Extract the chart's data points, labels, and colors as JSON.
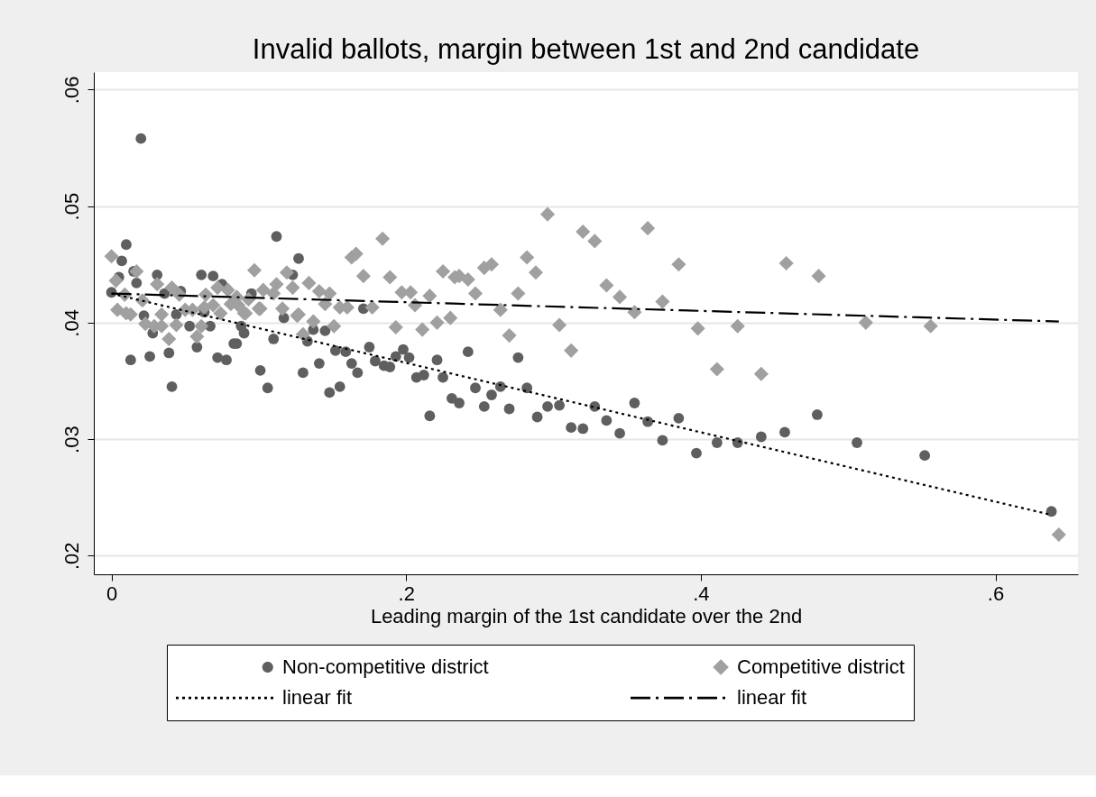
{
  "chart_data": {
    "type": "scatter",
    "title": "Invalid ballots, margin between 1st and 2nd candidate",
    "xlabel": "Leading margin of the 1st candidate over the 2nd",
    "xlim": [
      -0.012,
      0.656
    ],
    "xticks": [
      {
        "value": 0,
        "label": "0"
      },
      {
        "value": 0.2,
        "label": ".2"
      },
      {
        "value": 0.4,
        "label": ".4"
      },
      {
        "value": 0.6,
        "label": ".6"
      }
    ],
    "ylim": [
      0.0184,
      0.0615
    ],
    "yticks": [
      {
        "value": 0.02,
        "label": ".02"
      },
      {
        "value": 0.03,
        "label": ".03"
      },
      {
        "value": 0.04,
        "label": ".04"
      },
      {
        "value": 0.05,
        "label": ".05"
      },
      {
        "value": 0.06,
        "label": ".06"
      }
    ],
    "grid": "y",
    "legend": "bottom",
    "series": [
      {
        "name": "Non-competitive district",
        "type": "scatter",
        "marker": "circle",
        "color": "#5f5f5f",
        "x": [
          0.0,
          0.013,
          0.026,
          0.039,
          0.041,
          0.058,
          0.072,
          0.078,
          0.083,
          0.085,
          0.101,
          0.106,
          0.11,
          0.13,
          0.141,
          0.148,
          0.155,
          0.152,
          0.159,
          0.163,
          0.167,
          0.175,
          0.179,
          0.185,
          0.189,
          0.193,
          0.198,
          0.202,
          0.207,
          0.212,
          0.216,
          0.221,
          0.225,
          0.231,
          0.022,
          0.028,
          0.053,
          0.063,
          0.067,
          0.088,
          0.09,
          0.117,
          0.133,
          0.137,
          0.145,
          0.171,
          0.02,
          0.01,
          0.007,
          0.112,
          0.127,
          0.015,
          0.017,
          0.005,
          0.031,
          0.061,
          0.069,
          0.075,
          0.123,
          0.036,
          0.047,
          0.095,
          0.044,
          0.242,
          0.276,
          0.247,
          0.264,
          0.282,
          0.236,
          0.258,
          0.253,
          0.27,
          0.289,
          0.296,
          0.304,
          0.312,
          0.32,
          0.328,
          0.336,
          0.345,
          0.355,
          0.364,
          0.374,
          0.385,
          0.397,
          0.411,
          0.425,
          0.441,
          0.457,
          0.479,
          0.506,
          0.552,
          0.638
        ],
        "values": [
          0.0426,
          0.0368,
          0.0371,
          0.0374,
          0.0345,
          0.0379,
          0.037,
          0.0368,
          0.0382,
          0.0382,
          0.0359,
          0.0344,
          0.0386,
          0.0357,
          0.0365,
          0.034,
          0.0345,
          0.0376,
          0.0375,
          0.0365,
          0.0357,
          0.0379,
          0.0367,
          0.0363,
          0.0362,
          0.0371,
          0.0377,
          0.037,
          0.0353,
          0.0355,
          0.032,
          0.0368,
          0.0353,
          0.0335,
          0.0406,
          0.0391,
          0.0397,
          0.0409,
          0.0397,
          0.0397,
          0.0391,
          0.0404,
          0.0384,
          0.0394,
          0.0393,
          0.0412,
          0.0558,
          0.0467,
          0.0453,
          0.0474,
          0.0455,
          0.0444,
          0.0434,
          0.0439,
          0.0441,
          0.0441,
          0.044,
          0.0433,
          0.0441,
          0.0425,
          0.0427,
          0.0425,
          0.0407,
          0.0375,
          0.037,
          0.0344,
          0.0345,
          0.0344,
          0.0331,
          0.0338,
          0.0328,
          0.0326,
          0.0319,
          0.0328,
          0.0329,
          0.031,
          0.0309,
          0.0328,
          0.0316,
          0.0305,
          0.0331,
          0.0315,
          0.0299,
          0.0318,
          0.0288,
          0.0297,
          0.0297,
          0.0302,
          0.0306,
          0.0321,
          0.0297,
          0.0286,
          0.0238
        ]
      },
      {
        "name": "Competitive district",
        "type": "scatter",
        "marker": "diamond",
        "color": "#a0a0a0",
        "x": [
          0.0,
          0.166,
          0.163,
          0.184,
          0.097,
          0.119,
          0.017,
          0.003,
          0.031,
          0.041,
          0.134,
          0.171,
          0.189,
          0.225,
          0.233,
          0.112,
          0.123,
          0.141,
          0.148,
          0.197,
          0.203,
          0.216,
          0.009,
          0.072,
          0.079,
          0.103,
          0.11,
          0.021,
          0.046,
          0.064,
          0.085,
          0.093,
          0.004,
          0.01,
          0.013,
          0.05,
          0.055,
          0.063,
          0.069,
          0.081,
          0.086,
          0.101,
          0.116,
          0.127,
          0.091,
          0.145,
          0.155,
          0.16,
          0.177,
          0.206,
          0.034,
          0.023,
          0.029,
          0.034,
          0.039,
          0.044,
          0.058,
          0.061,
          0.074,
          0.09,
          0.1,
          0.126,
          0.13,
          0.137,
          0.151,
          0.193,
          0.211,
          0.221,
          0.23,
          0.296,
          0.32,
          0.328,
          0.364,
          0.385,
          0.458,
          0.48,
          0.282,
          0.288,
          0.236,
          0.242,
          0.253,
          0.258,
          0.247,
          0.276,
          0.336,
          0.345,
          0.374,
          0.264,
          0.355,
          0.304,
          0.398,
          0.425,
          0.27,
          0.312,
          0.411,
          0.441,
          0.512,
          0.556,
          0.643
        ],
        "values": [
          0.0457,
          0.0459,
          0.0456,
          0.0472,
          0.0445,
          0.0443,
          0.0444,
          0.0436,
          0.0433,
          0.043,
          0.0434,
          0.044,
          0.0439,
          0.0444,
          0.0439,
          0.0433,
          0.043,
          0.0427,
          0.0425,
          0.0426,
          0.0426,
          0.0423,
          0.0424,
          0.043,
          0.0428,
          0.0428,
          0.0425,
          0.0419,
          0.0424,
          0.0424,
          0.0422,
          0.042,
          0.0411,
          0.0408,
          0.0407,
          0.0411,
          0.0411,
          0.0413,
          0.0415,
          0.0416,
          0.0415,
          0.0412,
          0.0412,
          0.0407,
          0.0408,
          0.0416,
          0.0413,
          0.0413,
          0.0413,
          0.0415,
          0.0407,
          0.0399,
          0.0397,
          0.0397,
          0.0386,
          0.0398,
          0.0388,
          0.0397,
          0.0408,
          0.0408,
          0.0412,
          0.0406,
          0.039,
          0.0401,
          0.0397,
          0.0396,
          0.0394,
          0.04,
          0.0404,
          0.0493,
          0.0478,
          0.047,
          0.0481,
          0.045,
          0.0451,
          0.044,
          0.0456,
          0.0443,
          0.044,
          0.0437,
          0.0447,
          0.045,
          0.0425,
          0.0425,
          0.0432,
          0.0422,
          0.0418,
          0.0411,
          0.0409,
          0.0398,
          0.0395,
          0.0397,
          0.0389,
          0.0376,
          0.036,
          0.0356,
          0.04,
          0.0397,
          0.0218
        ]
      },
      {
        "name": "linear fit",
        "type": "line",
        "marker": "none",
        "line_style": "dotted",
        "color": "#000000",
        "x": [
          0.0,
          0.638
        ],
        "values": [
          0.0425,
          0.0235
        ]
      },
      {
        "name": "linear fit",
        "type": "line",
        "marker": "none",
        "line_style": "dashed",
        "color": "#000000",
        "x": [
          0.0,
          0.643
        ],
        "values": [
          0.0425,
          0.0401
        ]
      }
    ]
  }
}
